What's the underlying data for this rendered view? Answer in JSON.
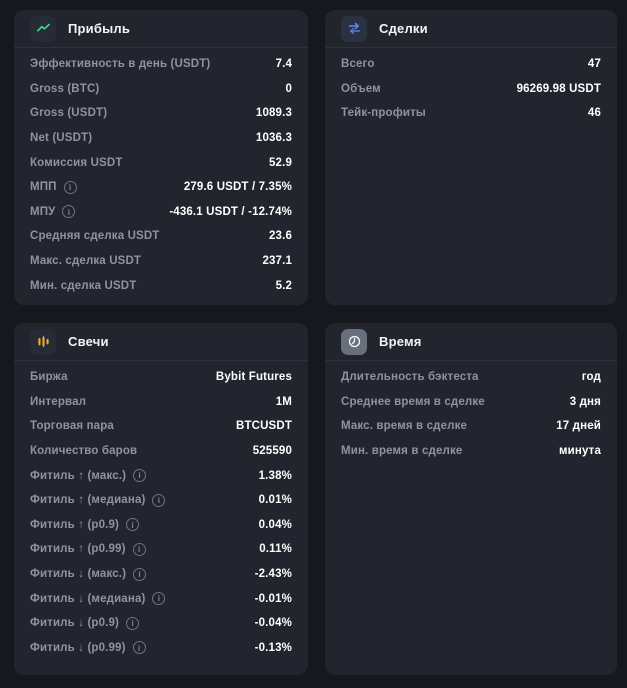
{
  "theme": {
    "background": "#17181d",
    "card_background": "#22252d",
    "divider": "#2e323b",
    "label_color": "#8d94a1",
    "value_color": "#ffffff",
    "tile_background": "#262b36",
    "tile_gray": "#696f7b",
    "accent_green": "#3ddc97",
    "accent_blue": "#5f8af8",
    "accent_orange": "#f5a92c"
  },
  "cards": [
    {
      "id": "profit",
      "title": "Прибыль",
      "icon": "chart-line-icon",
      "rows": [
        {
          "label": "Эффективность в день (USDT)",
          "value": "7.4"
        },
        {
          "label": "Gross (BTC)",
          "value": "0"
        },
        {
          "label": "Gross (USDT)",
          "value": "1089.3"
        },
        {
          "label": "Net (USDT)",
          "value": "1036.3"
        },
        {
          "label": "Комиссия USDT",
          "value": "52.9"
        },
        {
          "label": "МПП",
          "info": true,
          "value": "279.6 USDT / 7.35%"
        },
        {
          "label": "МПУ",
          "info": true,
          "value": "-436.1 USDT / -12.74%"
        },
        {
          "label": "Средняя сделка USDT",
          "value": "23.6"
        },
        {
          "label": "Макс. сделка USDT",
          "value": "237.1"
        },
        {
          "label": "Мин. сделка USDT",
          "value": "5.2"
        }
      ]
    },
    {
      "id": "trades",
      "title": "Сделки",
      "icon": "swap-arrows-icon",
      "rows": [
        {
          "label": "Всего",
          "value": "47"
        },
        {
          "label": "Объем",
          "value": "96269.98 USDT"
        },
        {
          "label": "Тейк-профиты",
          "value": "46"
        }
      ]
    },
    {
      "id": "candles",
      "title": "Свечи",
      "icon": "candlestick-icon",
      "rows": [
        {
          "label": "Биржа",
          "value": "Bybit Futures"
        },
        {
          "label": "Интервал",
          "value": "1M"
        },
        {
          "label": "Торговая пара",
          "value": "BTCUSDT"
        },
        {
          "label": "Количество баров",
          "value": "525590"
        },
        {
          "label": "Фитиль ↑ (макс.)",
          "info": true,
          "value": "1.38%"
        },
        {
          "label": "Фитиль ↑ (медиана)",
          "info": true,
          "value": "0.01%"
        },
        {
          "label": "Фитиль ↑ (p0.9)",
          "info": true,
          "value": "0.04%"
        },
        {
          "label": "Фитиль ↑ (p0.99)",
          "info": true,
          "value": "0.11%"
        },
        {
          "label": "Фитиль ↓ (макс.)",
          "info": true,
          "value": "-2.43%"
        },
        {
          "label": "Фитиль ↓ (медиана)",
          "info": true,
          "value": "-0.01%"
        },
        {
          "label": "Фитиль ↓ (p0.9)",
          "info": true,
          "value": "-0.04%"
        },
        {
          "label": "Фитиль ↓ (p0.99)",
          "info": true,
          "value": "-0.13%"
        }
      ]
    },
    {
      "id": "time",
      "title": "Время",
      "icon": "clock-icon",
      "rows": [
        {
          "label": "Длительность бэктеста",
          "value": "год"
        },
        {
          "label": "Среднее время в сделке",
          "value": "3 дня"
        },
        {
          "label": "Макс. время в сделке",
          "value": "17 дней"
        },
        {
          "label": "Мин. время в сделке",
          "value": "минута"
        }
      ]
    }
  ]
}
